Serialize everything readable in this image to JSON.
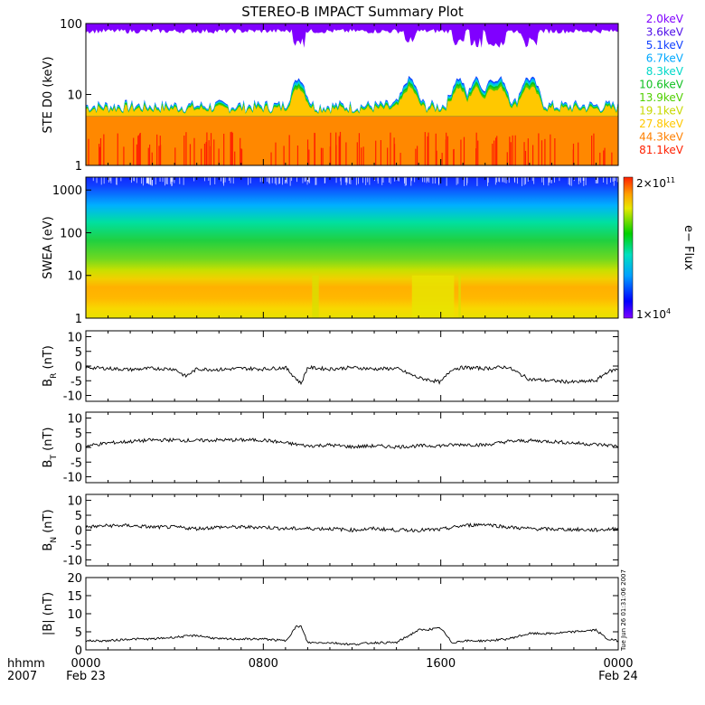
{
  "chart_data": [
    {
      "type": "line",
      "title": "STEREO-B IMPACT Summary Plot",
      "ylabel": "STE D0 (keV)",
      "yscale": "log",
      "ylim": [
        1,
        100
      ],
      "yticks": [
        "1",
        "10",
        "100"
      ],
      "energy_channels": [
        {
          "name": "2.0keV",
          "color": "#8000ff"
        },
        {
          "name": "3.6keV",
          "color": "#5010e8"
        },
        {
          "name": "5.1keV",
          "color": "#1040ff"
        },
        {
          "name": "6.7keV",
          "color": "#00a8ff"
        },
        {
          "name": "8.3keV",
          "color": "#00d8c8"
        },
        {
          "name": "10.6keV",
          "color": "#10c020"
        },
        {
          "name": "13.9keV",
          "color": "#50d000"
        },
        {
          "name": "19.1keV",
          "color": "#c8d800"
        },
        {
          "name": "27.8keV",
          "color": "#ffc800"
        },
        {
          "name": "44.3keV",
          "color": "#ff8000"
        },
        {
          "name": "81.1keV",
          "color": "#ff2000"
        }
      ],
      "peaks_hours": [
        9.6,
        14.6,
        16.8,
        17.6,
        18.3,
        18.7,
        19.9,
        20.1
      ]
    },
    {
      "type": "heatmap",
      "ylabel": "SWEA (eV)",
      "yscale": "log",
      "ylim": [
        1,
        2000
      ],
      "yticks": [
        "1",
        "10",
        "100",
        "1000"
      ],
      "colorbar": {
        "label": "e− Flux",
        "max_label": "2×10",
        "max_exp": "11",
        "min_label": "1×10",
        "min_exp": "4"
      }
    },
    {
      "type": "line",
      "ylabel_main": "B",
      "ylabel_sub": "R",
      "ylabel_unit": "(nT)",
      "ylim": [
        -12,
        12
      ],
      "yticks": [
        "-10",
        "-5",
        "0",
        "5",
        "10"
      ],
      "series": [
        {
          "x_hours": [
            0,
            1,
            2,
            3,
            4,
            4.5,
            5,
            6,
            7,
            8,
            9,
            9.7,
            10,
            11,
            12,
            13,
            14,
            15,
            16,
            16.5,
            17,
            18,
            19,
            20,
            21,
            22,
            23,
            23.5,
            24
          ],
          "values": [
            -0.5,
            -0.8,
            -1.2,
            -0.8,
            -1,
            -3.5,
            -1,
            -1.2,
            -0.8,
            -1,
            -0.5,
            -6,
            -0.5,
            -1,
            -0.5,
            -1,
            -0.8,
            -4,
            -5.5,
            -1,
            -0.5,
            -0.8,
            -0.3,
            -4.5,
            -5,
            -5.5,
            -5,
            -2,
            -1
          ]
        }
      ]
    },
    {
      "type": "line",
      "ylabel_main": "B",
      "ylabel_sub": "T",
      "ylabel_unit": "(nT)",
      "ylim": [
        -12,
        12
      ],
      "yticks": [
        "-10",
        "-5",
        "0",
        "5",
        "10"
      ],
      "series": [
        {
          "x_hours": [
            0,
            1,
            2,
            3,
            4,
            5,
            6,
            7,
            8,
            9,
            10,
            11,
            12,
            13,
            14,
            15,
            16,
            17,
            18,
            19,
            20,
            21,
            22,
            23,
            24
          ],
          "values": [
            0.5,
            1.5,
            2,
            2.5,
            2.5,
            2.3,
            2.5,
            2.5,
            2.5,
            1.5,
            0.5,
            0.8,
            0.2,
            0.5,
            0.2,
            0.5,
            0.6,
            1,
            0.8,
            2,
            2.3,
            2,
            1.5,
            1,
            0.5
          ]
        }
      ]
    },
    {
      "type": "line",
      "ylabel_main": "B",
      "ylabel_sub": "N",
      "ylabel_unit": "(nT)",
      "ylim": [
        -12,
        12
      ],
      "yticks": [
        "-10",
        "-5",
        "0",
        "5",
        "10"
      ],
      "series": [
        {
          "x_hours": [
            0,
            1,
            2,
            3,
            4,
            5,
            6,
            7,
            8,
            9,
            10,
            11,
            12,
            13,
            14,
            15,
            16,
            17,
            18,
            19,
            20,
            21,
            22,
            23,
            24
          ],
          "values": [
            1,
            1.5,
            1.5,
            1,
            1,
            0.5,
            1,
            1,
            1,
            0.5,
            0.5,
            0.5,
            0,
            0.5,
            0,
            0,
            0.2,
            1.5,
            2,
            1,
            0.5,
            0.3,
            0.2,
            0,
            0.5
          ]
        }
      ]
    },
    {
      "type": "line",
      "ylabel": "|B| (nT)",
      "ylim": [
        0,
        20
      ],
      "yticks": [
        "0",
        "5",
        "10",
        "15",
        "20"
      ],
      "stamp": "Tue Jun 26 01:31:06 2007",
      "series": [
        {
          "x_hours": [
            0,
            1,
            2,
            3,
            4,
            5,
            6,
            7,
            8,
            9,
            9.5,
            9.7,
            10,
            11,
            12,
            13,
            14,
            15,
            15.2,
            16,
            16.5,
            17,
            18,
            19,
            20,
            21,
            22,
            23,
            23.5,
            24
          ],
          "values": [
            2.5,
            2.5,
            3,
            3,
            3.5,
            4,
            3,
            3,
            3,
            2.5,
            6.5,
            6.5,
            2,
            2,
            1.5,
            2,
            2,
            5.5,
            5.5,
            6,
            2,
            2.5,
            2.5,
            3,
            4.5,
            4.5,
            5,
            5.5,
            3,
            2.5
          ]
        }
      ]
    }
  ],
  "time_axis": {
    "row1_left": "hhmm",
    "row2_left": "2007",
    "ticks": [
      {
        "label": "0000",
        "sublabel": "Feb 23"
      },
      {
        "label": "0800",
        "sublabel": ""
      },
      {
        "label": "1600",
        "sublabel": ""
      },
      {
        "label": "0000",
        "sublabel": "Feb 24"
      }
    ]
  }
}
